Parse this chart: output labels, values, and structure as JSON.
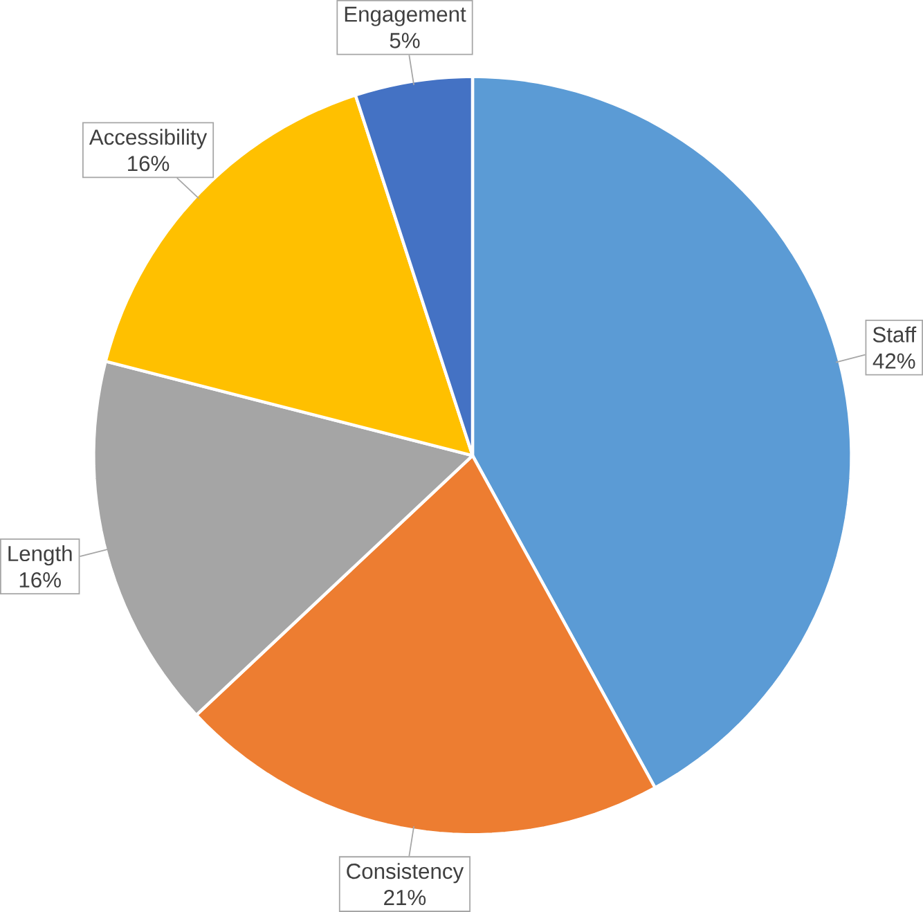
{
  "chart_data": {
    "type": "pie",
    "categories": [
      "Staff",
      "Consistency",
      "Length",
      "Accessibility",
      "Engagement"
    ],
    "values": [
      42,
      21,
      16,
      16,
      5
    ],
    "value_labels": [
      "42%",
      "21%",
      "16%",
      "16%",
      "5%"
    ],
    "colors": [
      "#5b9bd5",
      "#ed7d31",
      "#a5a5a5",
      "#ffc000",
      "#4472c4"
    ]
  }
}
